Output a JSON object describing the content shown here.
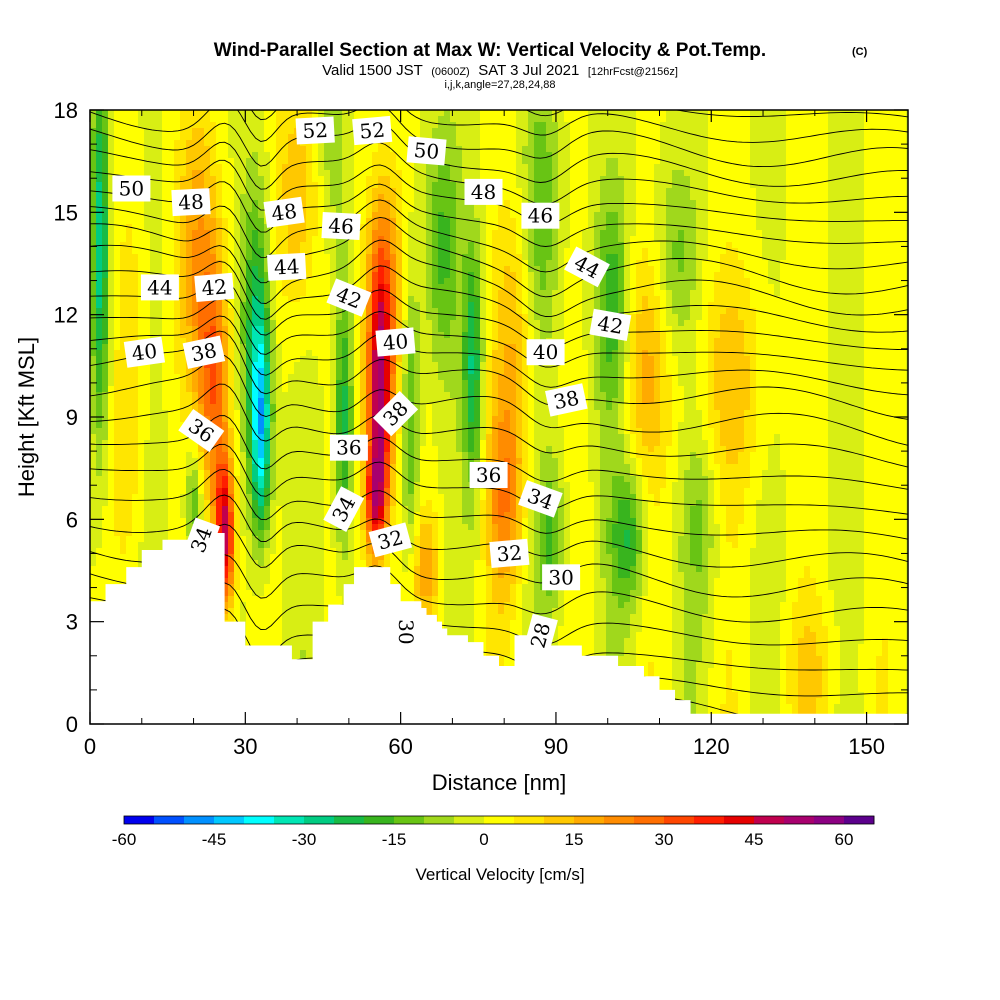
{
  "title": {
    "main": "Wind-Parallel Section at Max W: Vertical Velocity & Pot.Temp.",
    "copyright": "(C)",
    "line2_a": "Valid 1500 JST",
    "line2_b": "(0600Z)",
    "line2_c": "SAT 3 Jul 2021",
    "line2_d": "[12hrFcst@2156z]",
    "line3": "i,j,k,angle=27,28,24,88"
  },
  "chart_data": {
    "type": "heatmap",
    "xlabel": "Distance [nm]",
    "ylabel": "Height [Kft MSL]",
    "xlim": [
      0,
      158
    ],
    "ylim": [
      0,
      18
    ],
    "x_ticks": [
      "0",
      "30",
      "60",
      "90",
      "120",
      "150"
    ],
    "y_ticks": [
      "0",
      "3",
      "6",
      "9",
      "12",
      "15",
      "18"
    ],
    "grid": false,
    "colorbar": {
      "title": "Vertical Velocity [cm/s]",
      "tick_labels": [
        "-60",
        "-45",
        "-30",
        "-15",
        "0",
        "15",
        "30",
        "45",
        "60"
      ],
      "range": [
        -60,
        65
      ],
      "step": 5,
      "colors": [
        "#0000ee",
        "#0050ff",
        "#0090ff",
        "#00c8ff",
        "#00ffff",
        "#00e6b4",
        "#00cc82",
        "#18bb46",
        "#38b41e",
        "#68c414",
        "#a0d81c",
        "#d8ee14",
        "#ffff00",
        "#ffe600",
        "#ffc800",
        "#ffaa00",
        "#ff8c00",
        "#ff6e00",
        "#ff4600",
        "#ff1e00",
        "#e60000",
        "#c0004e",
        "#a8006e",
        "#8c0082",
        "#5c008c"
      ]
    },
    "terrain_top": [
      [
        0,
        3.6
      ],
      [
        2,
        3.6
      ],
      [
        3,
        4.1
      ],
      [
        6,
        4.1
      ],
      [
        7,
        4.6
      ],
      [
        9,
        4.6
      ],
      [
        10,
        5.1
      ],
      [
        13,
        5.1
      ],
      [
        14,
        5.4
      ],
      [
        19,
        5.4
      ],
      [
        20,
        5.6
      ],
      [
        24,
        5.6
      ],
      [
        26,
        3.0
      ],
      [
        29,
        3.0
      ],
      [
        30,
        2.3
      ],
      [
        38,
        2.3
      ],
      [
        39,
        1.9
      ],
      [
        42,
        1.9
      ],
      [
        43,
        3.0
      ],
      [
        45,
        3.0
      ],
      [
        46,
        3.5
      ],
      [
        48,
        3.5
      ],
      [
        49,
        4.1
      ],
      [
        51,
        4.6
      ],
      [
        57,
        4.6
      ],
      [
        58,
        4.1
      ],
      [
        60,
        3.6
      ],
      [
        63,
        3.6
      ],
      [
        64,
        3.4
      ],
      [
        65,
        3.2
      ],
      [
        67,
        3.0
      ],
      [
        68,
        2.8
      ],
      [
        69,
        2.6
      ],
      [
        72,
        2.6
      ],
      [
        73,
        2.4
      ],
      [
        75,
        2.4
      ],
      [
        76,
        2.0
      ],
      [
        78,
        2.0
      ],
      [
        79,
        1.7
      ],
      [
        81,
        1.7
      ],
      [
        82,
        2.6
      ],
      [
        87,
        2.6
      ],
      [
        88,
        2.3
      ],
      [
        94,
        2.3
      ],
      [
        95,
        2.0
      ],
      [
        101,
        2.0
      ],
      [
        102,
        1.7
      ],
      [
        106,
        1.7
      ],
      [
        107,
        1.4
      ],
      [
        109,
        1.4
      ],
      [
        110,
        1.0
      ],
      [
        112,
        1.0
      ],
      [
        113,
        0.7
      ],
      [
        115,
        0.7
      ],
      [
        116,
        0.3
      ],
      [
        158,
        0.3
      ]
    ],
    "plumes": [
      {
        "x": 26,
        "y": 5.5,
        "sx": 1.4,
        "sy": 1.6,
        "w": 50
      },
      {
        "x": 24,
        "y": 10,
        "sx": 2.2,
        "sy": 2.5,
        "w": 28
      },
      {
        "x": 21,
        "y": 14,
        "sx": 3,
        "sy": 3,
        "w": 18
      },
      {
        "x": 56,
        "y": 9.5,
        "sx": 1.8,
        "sy": 2.8,
        "w": 48
      },
      {
        "x": 55,
        "y": 6.5,
        "sx": 1.5,
        "sy": 1.2,
        "w": 30
      },
      {
        "x": 57,
        "y": 13,
        "sx": 2.5,
        "sy": 2.5,
        "w": 20
      },
      {
        "x": 80,
        "y": 6.5,
        "sx": 2.5,
        "sy": 2.0,
        "w": 20
      },
      {
        "x": 82,
        "y": 11,
        "sx": 3,
        "sy": 3,
        "w": 14
      },
      {
        "x": 40,
        "y": 15.5,
        "sx": 3,
        "sy": 2.5,
        "w": 15
      },
      {
        "x": 107,
        "y": 10.5,
        "sx": 4,
        "sy": 2.5,
        "w": 15
      },
      {
        "x": 124,
        "y": 10,
        "sx": 5,
        "sy": 2.5,
        "w": 12
      },
      {
        "x": 65,
        "y": 4.5,
        "sx": 2,
        "sy": 1.2,
        "w": 15
      },
      {
        "x": 8,
        "y": 10,
        "sx": 2,
        "sy": 4,
        "w": 10
      },
      {
        "x": 33,
        "y": 8.5,
        "sx": 1.4,
        "sy": 2.2,
        "w": -38
      },
      {
        "x": 32,
        "y": 12,
        "sx": 2,
        "sy": 3,
        "w": -22
      },
      {
        "x": 2,
        "y": 14,
        "sx": 1.2,
        "sy": 4,
        "w": -30
      },
      {
        "x": 49,
        "y": 9,
        "sx": 1.3,
        "sy": 3,
        "w": -24
      },
      {
        "x": 62,
        "y": 9,
        "sx": 1.2,
        "sy": 3,
        "w": -18
      },
      {
        "x": 74,
        "y": 10.5,
        "sx": 1.3,
        "sy": 2.5,
        "w": -25
      },
      {
        "x": 68,
        "y": 14,
        "sx": 2.5,
        "sy": 2.5,
        "w": -16
      },
      {
        "x": 87,
        "y": 15,
        "sx": 2.5,
        "sy": 3,
        "w": -14
      },
      {
        "x": 89,
        "y": 5.5,
        "sx": 2,
        "sy": 1.5,
        "w": -16
      },
      {
        "x": 101,
        "y": 12,
        "sx": 2.5,
        "sy": 2.5,
        "w": -20
      },
      {
        "x": 104,
        "y": 5.5,
        "sx": 2.5,
        "sy": 1.5,
        "w": -20
      },
      {
        "x": 113,
        "y": 13.5,
        "sx": 3,
        "sy": 2,
        "w": -12
      },
      {
        "x": 20,
        "y": 6.5,
        "sx": 1.2,
        "sy": 1.2,
        "w": -18
      },
      {
        "x": 47,
        "y": 17,
        "sx": 2,
        "sy": 2,
        "w": -10
      },
      {
        "x": 118,
        "y": 6,
        "sx": 2.5,
        "sy": 2,
        "w": -10
      },
      {
        "x": 140,
        "y": 1.5,
        "sx": 5,
        "sy": 1.5,
        "w": 8
      }
    ],
    "theta_levels": [
      28,
      29,
      30,
      31,
      32,
      33,
      34,
      35,
      36,
      37,
      38,
      39,
      40,
      41,
      42,
      43,
      44,
      45,
      46,
      47,
      48,
      49,
      50,
      51,
      52,
      53,
      54
    ],
    "contour_labels": [
      {
        "text": "52",
        "x": 43.5,
        "y": 17.4,
        "r": -3
      },
      {
        "text": "52",
        "x": 54.5,
        "y": 17.4,
        "r": -5
      },
      {
        "text": "50",
        "x": 65,
        "y": 16.8,
        "r": 5
      },
      {
        "text": "50",
        "x": 8,
        "y": 15.7,
        "r": 0
      },
      {
        "text": "48",
        "x": 19.5,
        "y": 15.3,
        "r": -3
      },
      {
        "text": "48",
        "x": 37.5,
        "y": 15,
        "r": -8
      },
      {
        "text": "48",
        "x": 76,
        "y": 15.6,
        "r": 0
      },
      {
        "text": "46",
        "x": 48.5,
        "y": 14.6,
        "r": 3
      },
      {
        "text": "46",
        "x": 87,
        "y": 14.9,
        "r": 0
      },
      {
        "text": "44",
        "x": 13.5,
        "y": 12.8,
        "r": 0
      },
      {
        "text": "44",
        "x": 38,
        "y": 13.4,
        "r": -3
      },
      {
        "text": "44",
        "x": 96,
        "y": 13.4,
        "r": 28
      },
      {
        "text": "42",
        "x": 24,
        "y": 12.8,
        "r": -5
      },
      {
        "text": "42",
        "x": 50,
        "y": 12.5,
        "r": 22
      },
      {
        "text": "42",
        "x": 100.5,
        "y": 11.7,
        "r": 10
      },
      {
        "text": "40",
        "x": 10.5,
        "y": 10.9,
        "r": -8
      },
      {
        "text": "40",
        "x": 59,
        "y": 11.2,
        "r": -5
      },
      {
        "text": "40",
        "x": 88,
        "y": 10.9,
        "r": 0
      },
      {
        "text": "38",
        "x": 22,
        "y": 10.9,
        "r": -12
      },
      {
        "text": "38",
        "x": 59,
        "y": 9.1,
        "r": -45
      },
      {
        "text": "38",
        "x": 92,
        "y": 9.5,
        "r": -12
      },
      {
        "text": "36",
        "x": 21.5,
        "y": 8.6,
        "r": 35
      },
      {
        "text": "36",
        "x": 50,
        "y": 8.1,
        "r": 0
      },
      {
        "text": "36",
        "x": 77,
        "y": 7.3,
        "r": 0
      },
      {
        "text": "34",
        "x": 21.5,
        "y": 5.4,
        "r": -70
      },
      {
        "text": "34",
        "x": 49,
        "y": 6.3,
        "r": -62
      },
      {
        "text": "34",
        "x": 87,
        "y": 6.6,
        "r": 20
      },
      {
        "text": "32",
        "x": 58,
        "y": 5.4,
        "r": -15
      },
      {
        "text": "32",
        "x": 81,
        "y": 5,
        "r": -5
      },
      {
        "text": "30",
        "x": 61,
        "y": 2.7,
        "r": 90
      },
      {
        "text": "30",
        "x": 91,
        "y": 4.3,
        "r": 0
      },
      {
        "text": "28",
        "x": 87,
        "y": 2.6,
        "r": -75
      }
    ]
  }
}
